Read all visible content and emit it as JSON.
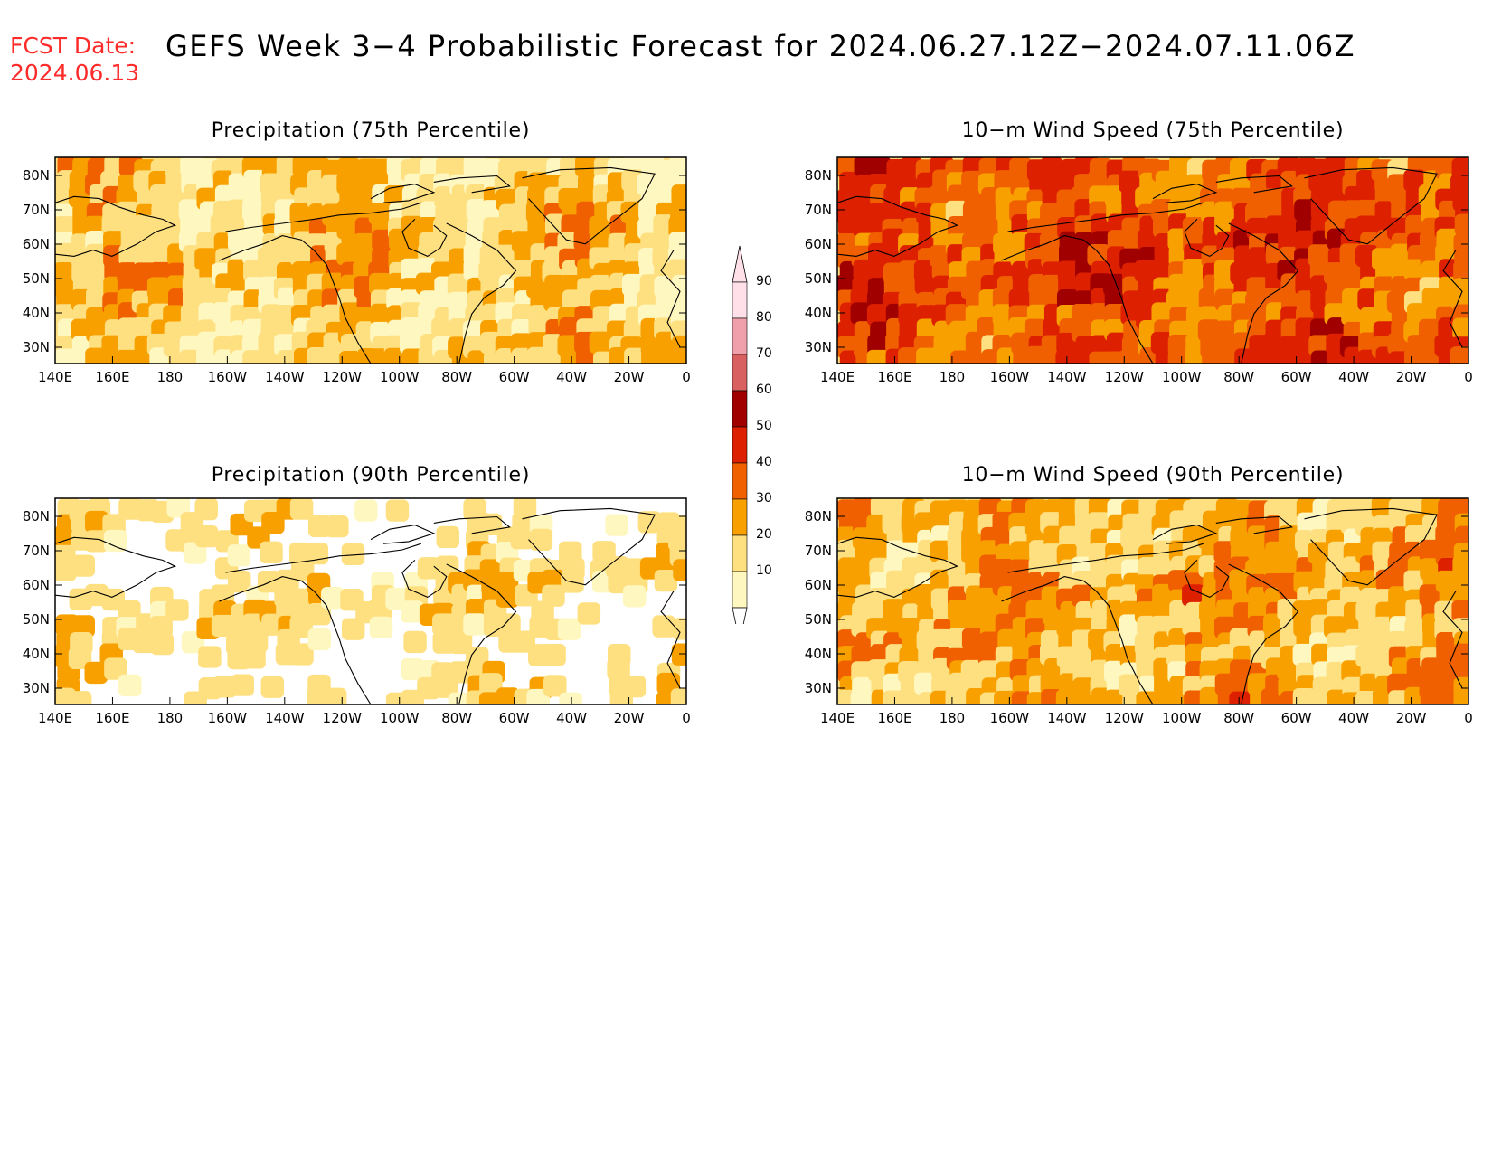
{
  "header": {
    "fcst_label": "FCST Date:",
    "fcst_date": "2024.06.13",
    "title": "GEFS Week 3−4 Probabilistic Forecast for 2024.06.27.12Z−2024.07.11.06Z"
  },
  "lat_ticks": [
    "80N",
    "70N",
    "60N",
    "50N",
    "40N",
    "30N"
  ],
  "lon_ticks": [
    "140E",
    "160E",
    "180",
    "160W",
    "140W",
    "120W",
    "100W",
    "80W",
    "60W",
    "40W",
    "20W",
    "0"
  ],
  "panels": [
    {
      "id": "precip75",
      "title": "Precipitation (75th Percentile)",
      "intensity": 1
    },
    {
      "id": "wind75",
      "title": "10−m Wind Speed (75th Percentile)",
      "intensity": 3
    },
    {
      "id": "precip90",
      "title": "Precipitation (90th Percentile)",
      "intensity": 0
    },
    {
      "id": "wind90",
      "title": "10−m Wind Speed (90th Percentile)",
      "intensity": 1.5
    }
  ],
  "colorbar": {
    "labels": [
      "90",
      "80",
      "70",
      "60",
      "50",
      "40",
      "30",
      "20",
      "10"
    ],
    "colors": [
      "#ffe0e8",
      "#f0a0aa",
      "#d86060",
      "#a00000",
      "#dd2000",
      "#f06000",
      "#f8a000",
      "#fee080",
      "#fff7c0"
    ]
  }
}
